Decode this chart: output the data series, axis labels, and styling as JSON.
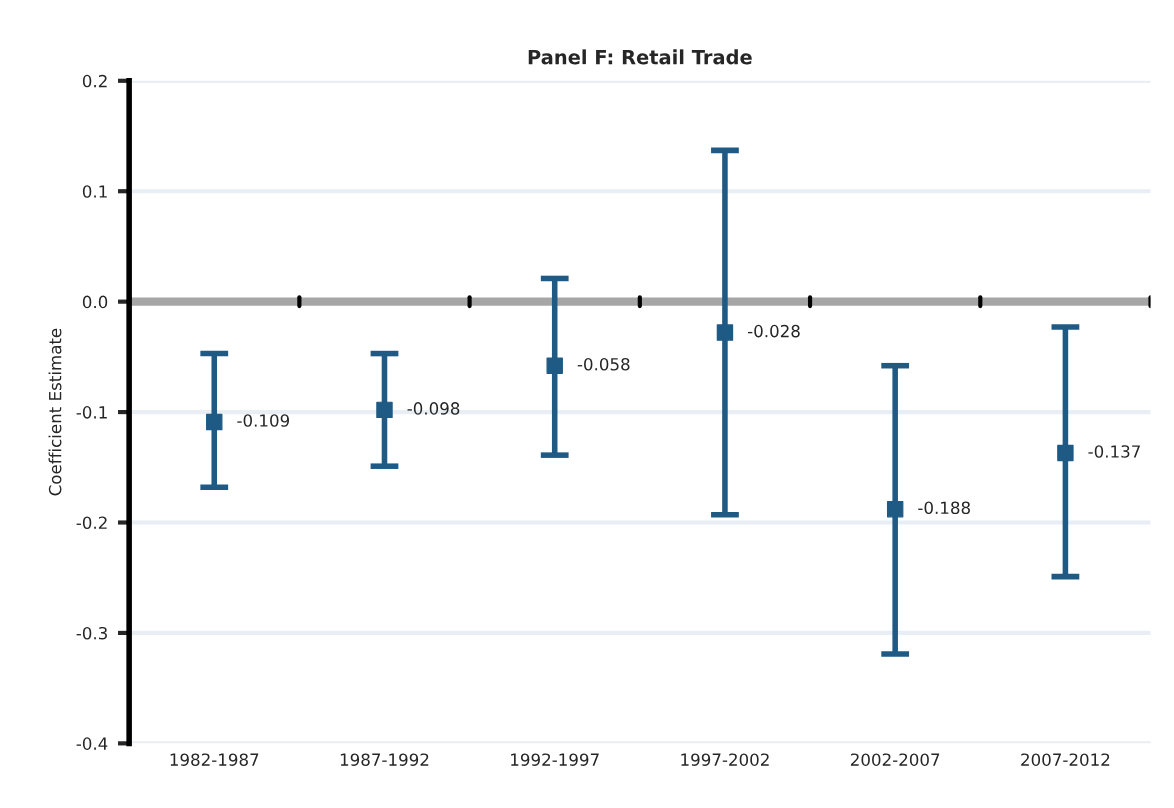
{
  "chart_data": {
    "type": "scatter",
    "title": "Panel F: Retail Trade",
    "ylabel": "Coefficient Estimate",
    "categories": [
      "1982-1987",
      "1987-1992",
      "1992-1997",
      "1997-2002",
      "2002-2007",
      "2007-2012"
    ],
    "values": [
      -0.109,
      -0.098,
      -0.058,
      -0.028,
      -0.188,
      -0.137
    ],
    "errors": [
      [
        -0.168,
        -0.047
      ],
      [
        -0.149,
        -0.047
      ],
      [
        -0.139,
        0.021
      ],
      [
        -0.193,
        0.137
      ],
      [
        -0.319,
        -0.058
      ],
      [
        -0.249,
        -0.023
      ]
    ],
    "value_labels": [
      "-0.109",
      "-0.098",
      "-0.058",
      "-0.028",
      "-0.188",
      "-0.137"
    ],
    "color": "#1f5a85",
    "marker": "square",
    "ylim": [
      -0.4,
      0.2
    ],
    "yticks": [
      {
        "value": -0.4,
        "label": "-0.4"
      },
      {
        "value": -0.3,
        "label": "-0.3"
      },
      {
        "value": -0.2,
        "label": "-0.2"
      },
      {
        "value": -0.1,
        "label": "-0.1"
      },
      {
        "value": 0.0,
        "label": "0.0"
      },
      {
        "value": 0.1,
        "label": "0.1"
      },
      {
        "value": 0.2,
        "label": "0.2"
      }
    ],
    "ref_lines": [
      {
        "axis": "y",
        "value": 0,
        "color": "#a6a6a6"
      }
    ],
    "grid": "y",
    "legend": false
  }
}
